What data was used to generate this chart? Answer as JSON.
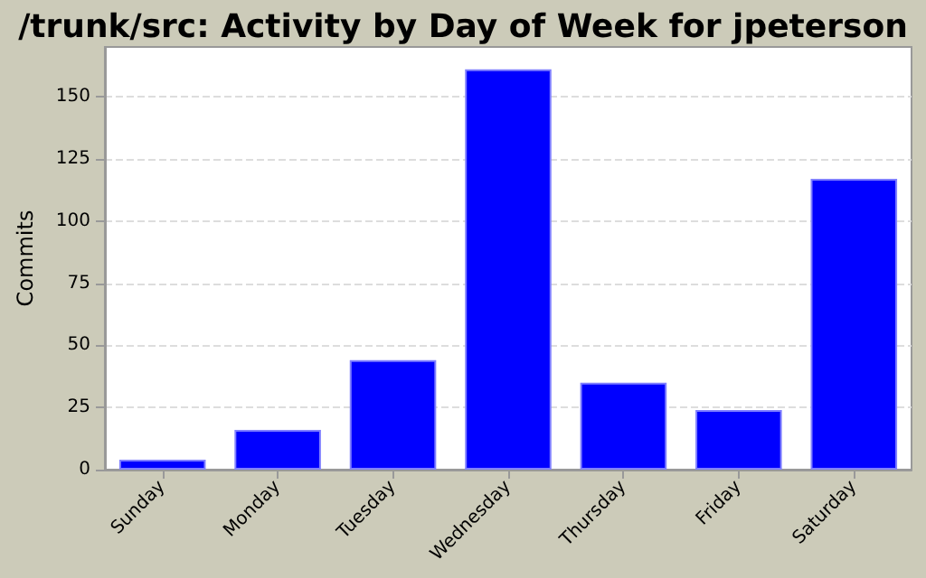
{
  "chart_data": {
    "type": "bar",
    "title": "/trunk/src: Activity by Day of Week for jpeterson",
    "ylabel": "Commits",
    "categories": [
      "Sunday",
      "Monday",
      "Tuesday",
      "Wednesday",
      "Thursday",
      "Friday",
      "Saturday"
    ],
    "values": [
      4,
      16,
      44,
      161,
      35,
      24,
      117
    ],
    "color": "#0000ff",
    "ylim": [
      0,
      170
    ],
    "yticks": [
      0,
      25,
      50,
      75,
      100,
      125,
      150
    ],
    "grid": "y"
  }
}
